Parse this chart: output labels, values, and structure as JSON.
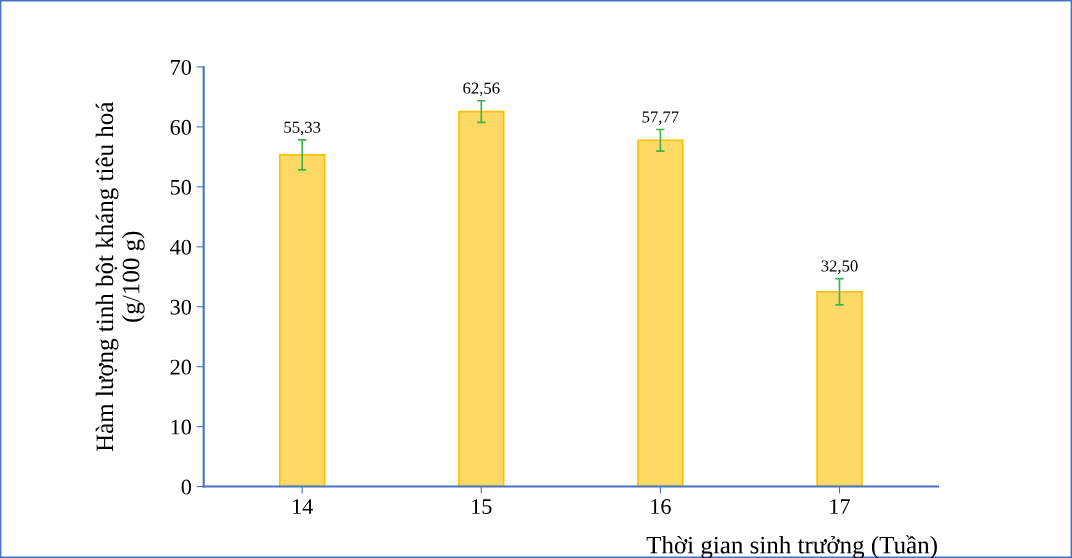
{
  "chart_data": {
    "type": "bar",
    "categories": [
      "14",
      "15",
      "16",
      "17"
    ],
    "values": [
      55.33,
      62.56,
      57.77,
      32.5
    ],
    "value_labels": [
      "55,33",
      "62,56",
      "57,77",
      "32,50"
    ],
    "errors": [
      2.5,
      1.8,
      1.8,
      2.2
    ],
    "color": "#ffd966",
    "xlabel": "Thời gian sinh trưởng (Tuần)",
    "ylabel": "Hàm lượng tinh bột kháng tiêu hoá\n(g/100 g)",
    "ylim": [
      0,
      70
    ],
    "yticks": [
      0,
      10,
      20,
      30,
      40,
      50,
      60,
      70
    ],
    "grid": false,
    "legend": false
  }
}
